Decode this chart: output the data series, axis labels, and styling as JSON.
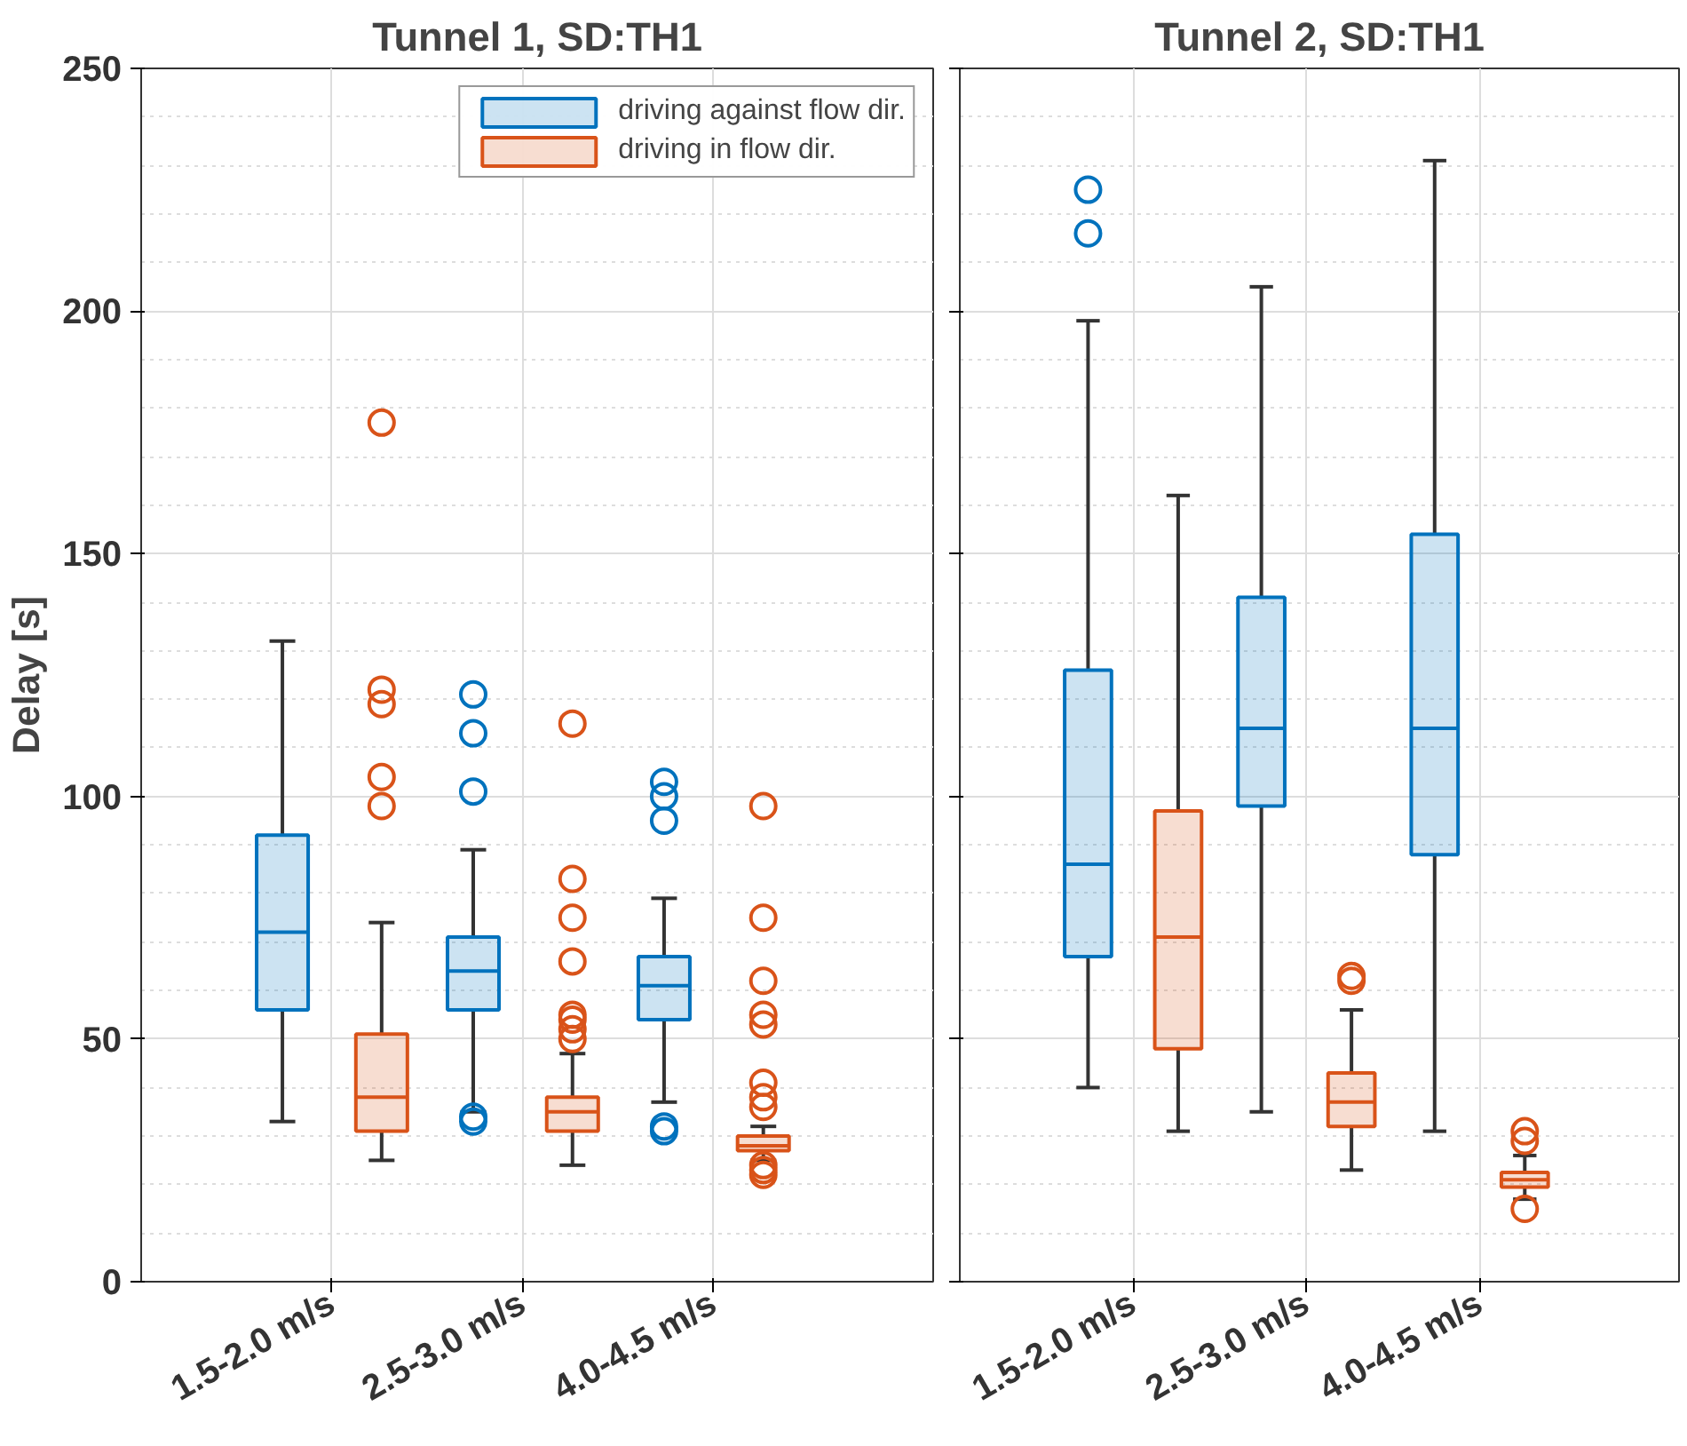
{
  "chart_data": [
    {
      "type": "box",
      "title": "Tunnel 1, SD:TH1",
      "ylabel": "Delay [s]",
      "categories": [
        "1.5-2.0 m/s",
        "2.5-3.0 m/s",
        "4.0-4.5 m/s"
      ],
      "ylim": [
        0,
        250
      ],
      "yticks": [
        0,
        50,
        100,
        150,
        200,
        250
      ],
      "grid": true,
      "legend": "top right",
      "series": [
        {
          "name": "driving against flow dir.",
          "color": "#0072bd",
          "boxes": [
            {
              "low": 33,
              "q1": 56,
              "median": 72,
              "q3": 92,
              "high": 132
            },
            {
              "low": 35,
              "q1": 56,
              "median": 64,
              "q3": 71,
              "high": 89,
              "outliers": [
                33,
                34,
                101,
                113,
                121
              ]
            },
            {
              "low": 37,
              "q1": 54,
              "median": 61,
              "q3": 67,
              "high": 79,
              "outliers": [
                31,
                32,
                95,
                100,
                103
              ]
            }
          ]
        },
        {
          "name": "driving in flow dir.",
          "color": "#d95319",
          "boxes": [
            {
              "low": 25,
              "q1": 31,
              "median": 38,
              "q3": 51,
              "high": 74,
              "outliers": [
                98,
                104,
                119,
                122,
                177
              ]
            },
            {
              "low": 24,
              "q1": 31,
              "median": 35,
              "q3": 38,
              "high": 47,
              "outliers": [
                50,
                52,
                54,
                55,
                66,
                75,
                83,
                115
              ]
            },
            {
              "low": 25,
              "q1": 27,
              "median": 28,
              "q3": 30,
              "high": 32,
              "outliers": [
                22,
                23,
                24,
                36,
                38,
                41,
                53,
                55,
                62,
                75,
                98
              ]
            }
          ]
        }
      ]
    },
    {
      "type": "box",
      "title": "Tunnel 2, SD:TH1",
      "categories": [
        "1.5-2.0 m/s",
        "2.5-3.0 m/s",
        "4.0-4.5 m/s"
      ],
      "ylim": [
        0,
        250
      ],
      "yticks": [
        0,
        50,
        100,
        150,
        200,
        250
      ],
      "tick_labels": "x",
      "grid": true,
      "series": [
        {
          "color": "#0072bd",
          "boxes": [
            {
              "low": 40,
              "q1": 67,
              "median": 86,
              "q3": 126,
              "high": 198,
              "outliers": [
                216,
                225
              ]
            },
            {
              "low": 35,
              "q1": 98,
              "median": 114,
              "q3": 141,
              "high": 205
            },
            {
              "low": 31,
              "q1": 88,
              "median": 114,
              "q3": 154,
              "high": 231
            }
          ]
        },
        {
          "color": "#d95319",
          "boxes": [
            {
              "low": 31,
              "q1": 48,
              "median": 71,
              "q3": 97,
              "high": 162
            },
            {
              "low": 23,
              "q1": 32,
              "median": 37,
              "q3": 43,
              "high": 56,
              "outliers": [
                62,
                63
              ]
            },
            {
              "low": 17,
              "q1": 19.5,
              "median": 21,
              "q3": 22.5,
              "high": 26,
              "outliers": [
                15,
                29,
                31
              ]
            }
          ]
        }
      ]
    }
  ]
}
